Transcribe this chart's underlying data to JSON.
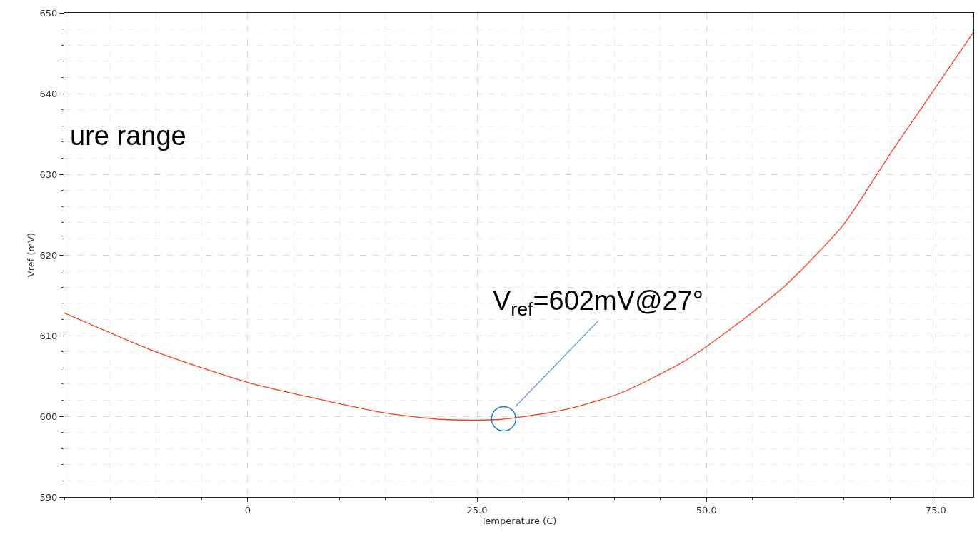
{
  "chart_data": {
    "type": "line",
    "xlabel": "Temperature (C)",
    "ylabel": "Vref (mV)",
    "x": [
      -20,
      -10.05,
      0,
      15,
      21.3,
      27.5,
      34.5,
      40.7,
      47.7,
      53.2,
      58.6,
      64.9,
      70.3,
      79.1
    ],
    "series": [
      {
        "color": "#ff3b1f",
        "values": [
          612.8,
          608.0,
          604.2,
          600.4,
          599.6,
          599.6,
          600.8,
          602.9,
          606.9,
          611.3,
          616.2,
          623.7,
          633.0,
          647.6
        ]
      }
    ],
    "xlim": [
      -20,
      79.1
    ],
    "ylim": [
      590,
      650
    ],
    "xticks": [
      0,
      {
        "value": 25,
        "label": "25.0"
      },
      {
        "value": 50,
        "label": "50.0"
      },
      {
        "value": 75,
        "label": "75.0"
      }
    ],
    "yticks": [
      590,
      600,
      610,
      620,
      630,
      640,
      650
    ],
    "annotations": [
      "ure range",
      {
        "text": "V$_{ref}$=602mV@27°",
        "x": 27.9,
        "y": 599.7
      }
    ],
    "grid": true,
    "marker": "none",
    "line_style": "solid"
  }
}
